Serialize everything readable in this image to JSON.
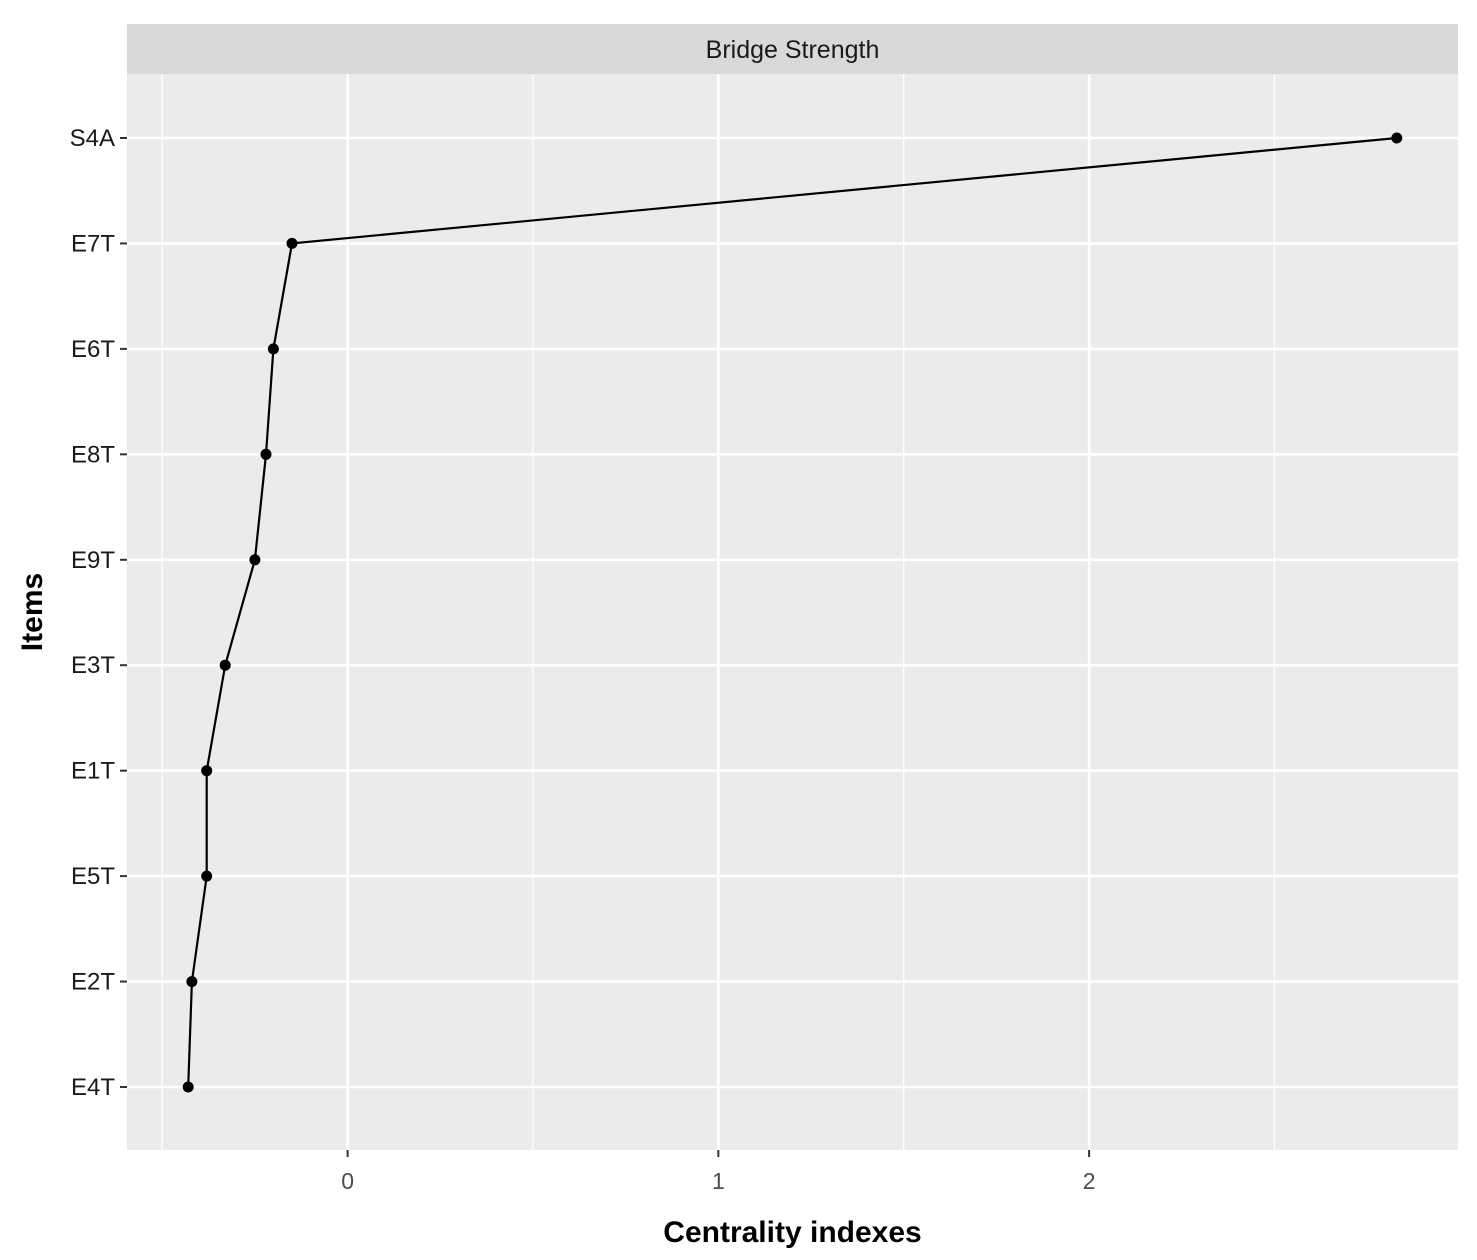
{
  "chart_data": {
    "type": "line",
    "panel_title": "Bridge Strength",
    "xlabel": "Centrality indexes",
    "ylabel": "Items",
    "categories": [
      "E4T",
      "E2T",
      "E5T",
      "E1T",
      "E3T",
      "E9T",
      "E8T",
      "E6T",
      "E7T",
      "S4A"
    ],
    "x_ticks": [
      "0",
      "1",
      "2"
    ],
    "series": [
      {
        "values": [
          -0.43,
          -0.42,
          -0.38,
          -0.38,
          -0.33,
          -0.25,
          -0.22,
          -0.2,
          -0.15,
          2.83
        ]
      }
    ],
    "xlim": [
      -0.595,
      2.995
    ],
    "grid": true,
    "colors": {
      "panel_background": "#ebebeb",
      "strip_background": "#d9d9d9",
      "grid": "#ffffff",
      "line": "#000000",
      "point": "#000000"
    }
  }
}
